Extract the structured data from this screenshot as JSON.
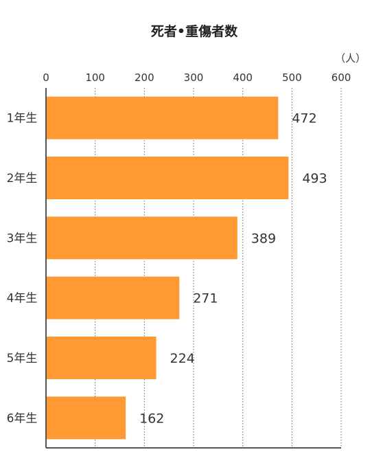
{
  "chart_data": {
    "type": "bar",
    "orientation": "horizontal",
    "title": "死者•重傷者数",
    "unit_label": "（人）",
    "categories": [
      "1年生",
      "2年生",
      "3年生",
      "4年生",
      "5年生",
      "6年生"
    ],
    "values": [
      472,
      493,
      389,
      271,
      224,
      162
    ],
    "value_labels": [
      "472",
      "493",
      "389",
      "271",
      "224",
      "162"
    ],
    "xlim": [
      0,
      600
    ],
    "x_ticks": [
      0,
      100,
      200,
      300,
      400,
      500,
      600
    ],
    "x_tick_labels": [
      "0",
      "100",
      "200",
      "300",
      "400",
      "500",
      "600"
    ],
    "grid": true,
    "bar_color": "#FF9933"
  }
}
